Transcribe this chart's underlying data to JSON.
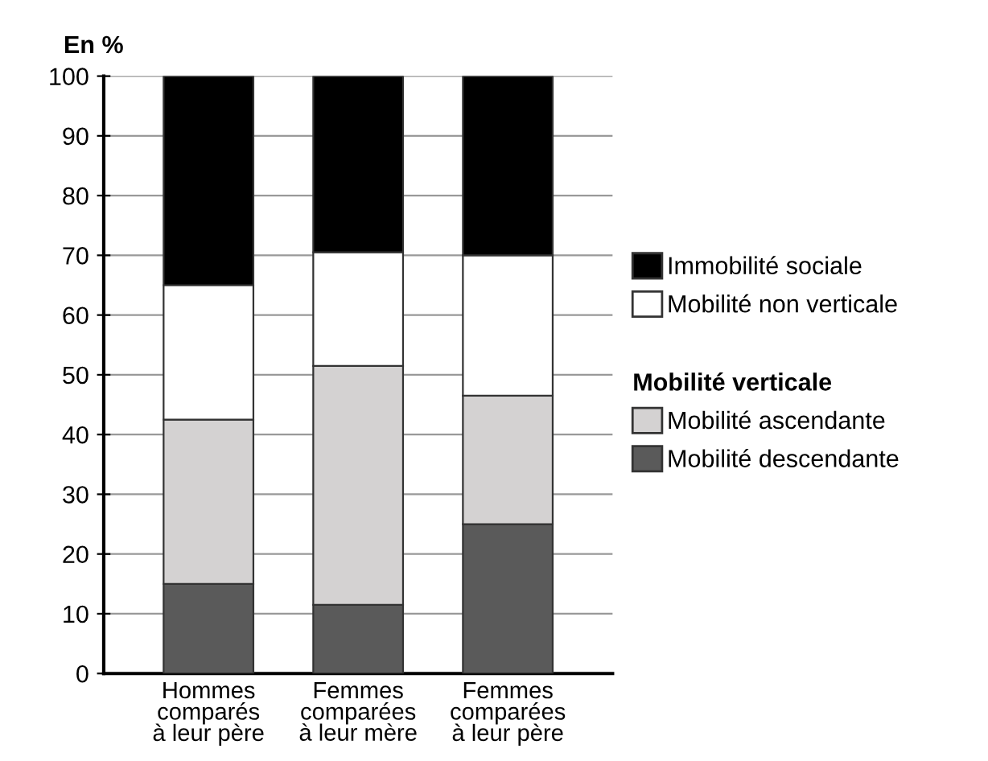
{
  "chart_data": {
    "type": "bar",
    "stacked": true,
    "ylabel": "En %",
    "legend_title": "Mobilité verticale",
    "categories": [
      "Hommes\ncomparés\nà leur père",
      "Femmes\ncomparées\nà leur mère",
      "Femmes\ncomparées\nà leur père"
    ],
    "series": [
      {
        "name": "Mobilité descendante",
        "color": "#5a5a5a",
        "values": [
          15,
          11.5,
          25
        ]
      },
      {
        "name": "Mobilité ascendante",
        "color": "#d4d2d2",
        "values": [
          27.5,
          40,
          21.5
        ]
      },
      {
        "name": "Mobilité non verticale",
        "color": "#ffffff",
        "values": [
          22.5,
          19,
          23.5
        ]
      },
      {
        "name": "Immobilité sociale",
        "color": "#000000",
        "values": [
          35,
          29.5,
          30
        ]
      }
    ],
    "ylim": [
      0,
      100
    ],
    "yticks": [
      0,
      10,
      20,
      30,
      40,
      50,
      60,
      70,
      80,
      90,
      100
    ],
    "grid": "y",
    "legend": "right"
  }
}
